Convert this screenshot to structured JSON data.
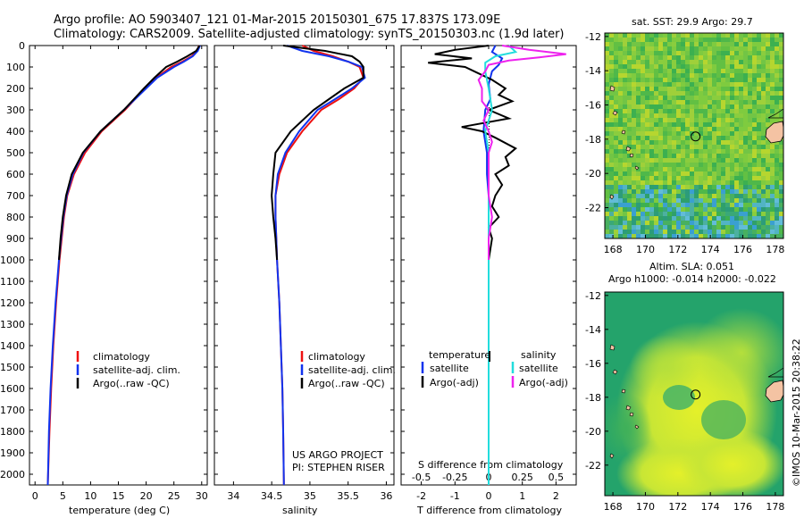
{
  "title_line1": "Argo profile: AO 5903407_121 01-Mar-2015 20150301_675 17.837S 173.09E",
  "title_line2": "Climatology: CARS2009. Satellite-adjusted climatology: synTS_20150303.nc (1.9d later)",
  "credit": "©IMOS 10-Mar-2015 20:38:22",
  "project_line1": "US ARGO PROJECT",
  "project_line2": "PI: STEPHEN RISER",
  "map_sst_title": "sat. SST: 29.9 Argo: 29.7",
  "map_sla_title1": "Altim. SLA: 0.051",
  "map_sla_title2": "Argo h1000: -0.014 h2000: -0.022",
  "colors": {
    "climatology": "#ee1111",
    "satellite": "#1133ee",
    "argo": "#000000",
    "s_sat": "#22dddd",
    "s_argo": "#ee22ee",
    "land": "#f4c3a3"
  },
  "chart_data": [
    {
      "type": "line",
      "xlabel": "temperature (deg C)",
      "ylim": [
        2050,
        0
      ],
      "xlim": [
        -1,
        31
      ],
      "xticks": [
        "0",
        "5",
        "10",
        "15",
        "20",
        "25",
        "30"
      ],
      "xtick_values": [
        0,
        5,
        10,
        15,
        20,
        25,
        30
      ],
      "yticks": [
        "0",
        "100",
        "200",
        "300",
        "400",
        "500",
        "600",
        "700",
        "800",
        "900",
        "1000",
        "1100",
        "1200",
        "1300",
        "1400",
        "1500",
        "1600",
        "1700",
        "1800",
        "1900",
        "2000"
      ],
      "legend": [
        "climatology",
        "satellite-adj. clim.",
        "Argo(..raw -QC)"
      ],
      "series": [
        {
          "color": "#ee1111",
          "depth": [
            0,
            25,
            50,
            75,
            100,
            150,
            200,
            250,
            300,
            400,
            500,
            600,
            700,
            800,
            900,
            1000,
            1200,
            1400,
            1600,
            1800,
            2050
          ],
          "values": [
            29.5,
            29.2,
            28.2,
            26.5,
            24.5,
            21.8,
            19.8,
            18.0,
            16.2,
            12.0,
            9.0,
            7.0,
            5.8,
            5.2,
            4.8,
            4.4,
            3.8,
            3.3,
            2.9,
            2.6,
            2.3
          ]
        },
        {
          "color": "#1133ee",
          "depth": [
            0,
            25,
            50,
            75,
            100,
            150,
            200,
            250,
            300,
            400,
            500,
            600,
            700,
            800,
            900,
            1000,
            1200,
            1400,
            1600,
            1800,
            2050
          ],
          "values": [
            29.7,
            29.3,
            28.4,
            26.8,
            25.0,
            22.0,
            20.0,
            18.0,
            16.0,
            11.8,
            8.7,
            6.8,
            5.7,
            5.1,
            4.7,
            4.3,
            3.7,
            3.2,
            2.8,
            2.5,
            2.3
          ]
        },
        {
          "color": "#000000",
          "depth": [
            0,
            25,
            50,
            75,
            100,
            150,
            200,
            250,
            300,
            400,
            500,
            600,
            700,
            800,
            900,
            1000
          ],
          "values": [
            29.6,
            29.0,
            27.4,
            25.6,
            23.6,
            21.5,
            19.6,
            17.8,
            16.0,
            11.8,
            8.6,
            6.6,
            5.6,
            5.0,
            4.6,
            4.3
          ]
        }
      ]
    },
    {
      "type": "line",
      "xlabel": "salinity",
      "ylim": [
        2050,
        0
      ],
      "xlim": [
        33.75,
        36.1
      ],
      "xticks": [
        "34",
        "34.5",
        "35",
        "35.5",
        "36"
      ],
      "xtick_values": [
        34,
        34.5,
        35,
        35.5,
        36
      ],
      "legend": [
        "climatology",
        "satellite-adj. clim.",
        "Argo(..raw -QC)"
      ],
      "series": [
        {
          "color": "#ee1111",
          "depth": [
            0,
            25,
            50,
            75,
            100,
            150,
            200,
            250,
            300,
            400,
            500,
            600,
            700,
            800,
            900,
            1000,
            1200,
            1400,
            1600,
            1800,
            2050
          ],
          "values": [
            34.9,
            35.05,
            35.3,
            35.5,
            35.65,
            35.7,
            35.58,
            35.38,
            35.15,
            34.9,
            34.7,
            34.6,
            34.55,
            34.55,
            34.56,
            34.57,
            34.6,
            34.62,
            34.64,
            34.65,
            34.66
          ]
        },
        {
          "color": "#1133ee",
          "depth": [
            0,
            25,
            50,
            75,
            100,
            150,
            200,
            250,
            300,
            400,
            500,
            600,
            700,
            800,
            900,
            1000,
            1200,
            1400,
            1600,
            1800,
            2050
          ],
          "values": [
            34.7,
            34.9,
            35.25,
            35.5,
            35.68,
            35.72,
            35.55,
            35.33,
            35.1,
            34.86,
            34.68,
            34.58,
            34.55,
            34.55,
            34.56,
            34.57,
            34.6,
            34.62,
            34.64,
            34.65,
            34.66
          ]
        },
        {
          "color": "#000000",
          "depth": [
            0,
            25,
            50,
            75,
            100,
            150,
            200,
            250,
            300,
            400,
            500,
            600,
            700,
            800,
            900,
            1000
          ],
          "values": [
            34.65,
            35.2,
            35.55,
            35.65,
            35.7,
            35.7,
            35.45,
            35.25,
            35.05,
            34.75,
            34.55,
            34.52,
            34.5,
            34.52,
            34.55,
            34.57
          ]
        }
      ]
    },
    {
      "type": "line",
      "xlabel": "T difference from climatology",
      "x2label": "S difference from climatology",
      "ylim": [
        2050,
        0
      ],
      "xlim": [
        -2.6,
        2.6
      ],
      "xticks": [
        "-2",
        "-1",
        "0",
        "1",
        "2"
      ],
      "xtick_values": [
        -2,
        -1,
        0,
        1,
        2
      ],
      "x2ticks": [
        "-0.5",
        "-0.25",
        "0",
        "0.25",
        "0.5"
      ],
      "x2tick_values": [
        -2,
        -1,
        0,
        1,
        2
      ],
      "legend_headers": [
        "temperature",
        "salinity"
      ],
      "legend": [
        "satellite",
        "Argo(-adj)",
        "satellite",
        "Argo(-adj)"
      ],
      "series": [
        {
          "name": "satellite",
          "color": "#1133ee",
          "depth": [
            0,
            30,
            60,
            90,
            120,
            180,
            250,
            300,
            400,
            500,
            600,
            700,
            800,
            1000,
            2050
          ],
          "values": [
            0.2,
            0.1,
            0.4,
            0.3,
            0.1,
            0.0,
            0.05,
            -0.1,
            -0.15,
            -0.05,
            -0.05,
            0.0,
            0.0,
            0.0,
            0.0
          ]
        },
        {
          "name": "Argo(-adj)",
          "color": "#000000",
          "depth": [
            0,
            20,
            40,
            60,
            80,
            100,
            130,
            160,
            200,
            230,
            260,
            300,
            340,
            380,
            400,
            430,
            480,
            520,
            560,
            600,
            650,
            700,
            750,
            800,
            850,
            900,
            1000
          ],
          "values": [
            0.0,
            -1.0,
            -1.6,
            -0.5,
            -1.8,
            -0.7,
            -0.3,
            0.1,
            0.5,
            0.3,
            0.7,
            0.0,
            0.6,
            -0.8,
            -0.2,
            0.2,
            0.8,
            0.5,
            0.6,
            0.2,
            0.4,
            0.2,
            0.1,
            0.3,
            0.0,
            0.1,
            0.0
          ]
        },
        {
          "name": "satellite",
          "color": "#22dddd",
          "depth": [
            0,
            30,
            50,
            80,
            120,
            200,
            300,
            400,
            500,
            600,
            700,
            800,
            1000,
            2050
          ],
          "values": [
            0.6,
            0.8,
            0.2,
            -0.1,
            -0.1,
            0.0,
            0.1,
            -0.1,
            0.0,
            0.0,
            0.0,
            0.0,
            0.0,
            0.0
          ]
        },
        {
          "name": "Argo(-adj)",
          "color": "#ee22ee",
          "depth": [
            0,
            20,
            40,
            55,
            70,
            90,
            120,
            160,
            200,
            260,
            300,
            350,
            400,
            450,
            500,
            600,
            700,
            800,
            900,
            1000
          ],
          "values": [
            0.4,
            1.2,
            2.3,
            1.5,
            0.6,
            0.0,
            -0.1,
            -0.3,
            -0.2,
            -0.2,
            0.0,
            -0.15,
            0.0,
            0.1,
            0.0,
            0.0,
            0.0,
            0.1,
            0.0,
            0.0
          ]
        }
      ]
    },
    {
      "type": "heatmap",
      "title": "sat. SST: 29.9 Argo: 29.7",
      "xlim": [
        167.5,
        178.5
      ],
      "ylim": [
        -23.8,
        -11.8
      ],
      "xticks": [
        "168",
        "170",
        "172",
        "174",
        "176",
        "178"
      ],
      "xtick_values": [
        168,
        170,
        172,
        174,
        176,
        178
      ],
      "yticks": [
        "-12",
        "-14",
        "-16",
        "-18",
        "-20",
        "-22"
      ],
      "ytick_values": [
        -12,
        -14,
        -16,
        -18,
        -20,
        -22
      ],
      "float_position": [
        173.09,
        -17.84
      ]
    },
    {
      "type": "heatmap",
      "title": "Altim. SLA: 0.051",
      "xlim": [
        167.5,
        178.5
      ],
      "ylim": [
        -23.8,
        -11.8
      ],
      "xticks": [
        "168",
        "170",
        "172",
        "174",
        "176",
        "178"
      ],
      "xtick_values": [
        168,
        170,
        172,
        174,
        176,
        178
      ],
      "yticks": [
        "-12",
        "-14",
        "-16",
        "-18",
        "-20",
        "-22"
      ],
      "ytick_values": [
        -12,
        -14,
        -16,
        -18,
        -20,
        -22
      ],
      "float_position": [
        173.09,
        -17.84
      ]
    }
  ]
}
